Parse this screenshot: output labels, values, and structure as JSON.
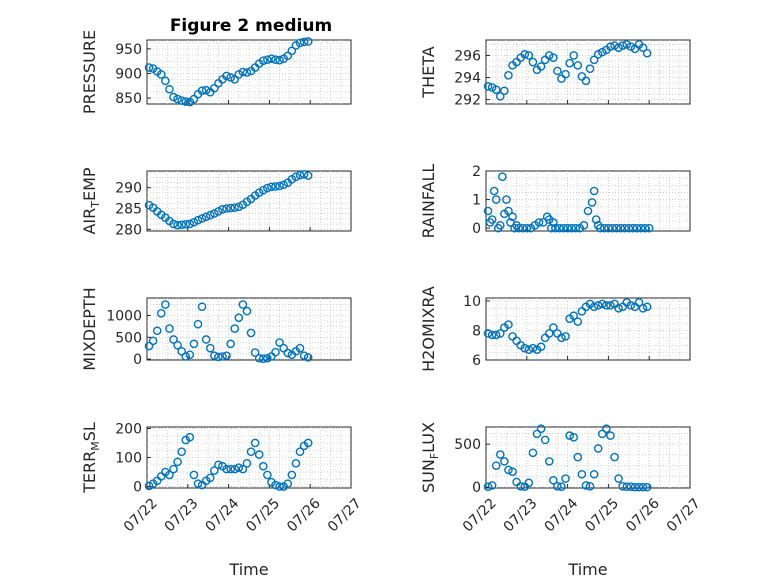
{
  "figure_title": "Figure 2 medium",
  "x_axis_label": "Time",
  "x_tick_labels": [
    "07/22",
    "07/23",
    "07/24",
    "07/25",
    "07/26",
    "07/27"
  ],
  "colors": {
    "marker": "#0072BD",
    "axes": "#262626",
    "grid": "#c8c8c8"
  },
  "chart_data": [
    {
      "type": "scatter",
      "title": "Figure 2 medium",
      "ylabel": "PRESSURE",
      "xlabel": "",
      "xlim": [
        "07/22",
        "07/27"
      ],
      "ylim": [
        838,
        968
      ],
      "yticks": [
        850,
        900,
        950
      ],
      "grid": true,
      "marker": "circle",
      "x": [
        22.05,
        22.15,
        22.25,
        22.35,
        22.45,
        22.55,
        22.65,
        22.75,
        22.85,
        22.95,
        23.05,
        23.15,
        23.25,
        23.35,
        23.45,
        23.55,
        23.65,
        23.75,
        23.85,
        23.95,
        24.05,
        24.15,
        24.25,
        24.35,
        24.45,
        24.55,
        24.65,
        24.75,
        24.85,
        24.95,
        25.05,
        25.15,
        25.25,
        25.35,
        25.45,
        25.55,
        25.65,
        25.75,
        25.85,
        25.95
      ],
      "y": [
        912,
        910,
        904,
        898,
        885,
        868,
        852,
        848,
        845,
        843,
        842,
        848,
        858,
        865,
        866,
        862,
        870,
        880,
        888,
        895,
        892,
        888,
        898,
        903,
        902,
        905,
        912,
        920,
        926,
        928,
        930,
        928,
        927,
        930,
        936,
        946,
        957,
        962,
        964,
        965
      ]
    },
    {
      "type": "scatter",
      "ylabel": "THETA",
      "xlabel": "",
      "xlim": [
        "07/22",
        "07/27"
      ],
      "ylim": [
        291.6,
        297.4
      ],
      "yticks": [
        292,
        294,
        296
      ],
      "grid": true,
      "marker": "circle",
      "x": [
        22.05,
        22.15,
        22.25,
        22.35,
        22.45,
        22.55,
        22.65,
        22.75,
        22.85,
        22.95,
        23.05,
        23.15,
        23.25,
        23.35,
        23.45,
        23.55,
        23.65,
        23.75,
        23.85,
        23.95,
        24.05,
        24.15,
        24.25,
        24.35,
        24.45,
        24.55,
        24.65,
        24.75,
        24.85,
        24.95,
        25.05,
        25.15,
        25.25,
        25.35,
        25.45,
        25.55,
        25.65,
        25.75,
        25.85,
        25.95
      ],
      "y": [
        293.2,
        293.1,
        292.9,
        292.3,
        292.8,
        294.2,
        295.1,
        295.4,
        295.8,
        296.1,
        296.0,
        295.4,
        294.7,
        295.0,
        295.6,
        296.0,
        295.8,
        294.6,
        293.9,
        294.3,
        295.3,
        296.0,
        295.1,
        294.1,
        293.7,
        294.8,
        295.6,
        296.1,
        296.3,
        296.5,
        296.8,
        296.9,
        296.7,
        296.9,
        297.0,
        296.8,
        296.6,
        297.0,
        296.7,
        296.2
      ]
    },
    {
      "type": "scatter",
      "ylabel": "AIR_TEMP",
      "xlabel": "",
      "xlim": [
        "07/22",
        "07/27"
      ],
      "ylim": [
        279.6,
        294.0
      ],
      "yticks": [
        280,
        285,
        290
      ],
      "grid": true,
      "marker": "circle",
      "x": [
        22.05,
        22.15,
        22.25,
        22.35,
        22.45,
        22.55,
        22.65,
        22.75,
        22.85,
        22.95,
        23.05,
        23.15,
        23.25,
        23.35,
        23.45,
        23.55,
        23.65,
        23.75,
        23.85,
        23.95,
        24.05,
        24.15,
        24.25,
        24.35,
        24.45,
        24.55,
        24.65,
        24.75,
        24.85,
        24.95,
        25.05,
        25.15,
        25.25,
        25.35,
        25.45,
        25.55,
        25.65,
        25.75,
        25.85,
        25.95
      ],
      "y": [
        285.8,
        285.2,
        284.3,
        283.5,
        282.8,
        282.0,
        281.3,
        281.0,
        281.1,
        281.2,
        281.3,
        281.7,
        282.2,
        282.6,
        283.0,
        283.4,
        283.8,
        284.3,
        284.8,
        285.0,
        285.1,
        285.2,
        285.4,
        285.9,
        286.6,
        287.3,
        288.1,
        288.8,
        289.4,
        289.9,
        290.2,
        290.3,
        290.4,
        290.7,
        291.2,
        292.0,
        292.6,
        293.0,
        293.2,
        292.9
      ]
    },
    {
      "type": "scatter",
      "ylabel": "RAINFALL",
      "xlabel": "",
      "xlim": [
        "07/22",
        "07/27"
      ],
      "ylim": [
        -0.1,
        2.0
      ],
      "yticks": [
        0,
        1,
        2
      ],
      "grid": true,
      "marker": "circle",
      "x": [
        22.05,
        22.1,
        22.15,
        22.2,
        22.25,
        22.3,
        22.35,
        22.4,
        22.45,
        22.5,
        22.55,
        22.6,
        22.65,
        22.7,
        22.75,
        22.8,
        22.9,
        23.0,
        23.1,
        23.2,
        23.3,
        23.4,
        23.5,
        23.55,
        23.6,
        23.65,
        23.7,
        23.8,
        23.9,
        24.0,
        24.1,
        24.2,
        24.3,
        24.4,
        24.5,
        24.6,
        24.65,
        24.7,
        24.75,
        24.8,
        24.9,
        25.0,
        25.1,
        25.2,
        25.3,
        25.4,
        25.5,
        25.6,
        25.7,
        25.8,
        25.9,
        26.0
      ],
      "y": [
        0.6,
        0.2,
        0.3,
        1.3,
        1.0,
        0.0,
        0.1,
        1.8,
        0.5,
        1.0,
        0.6,
        0.2,
        0.4,
        0.0,
        0.1,
        0.0,
        0.0,
        0.0,
        0.0,
        0.1,
        0.2,
        0.2,
        0.4,
        0.3,
        0.0,
        0.2,
        0.0,
        0.0,
        0.0,
        0.0,
        0.0,
        0.0,
        0.0,
        0.1,
        0.6,
        0.9,
        1.3,
        0.3,
        0.1,
        0.0,
        0.0,
        0.0,
        0.0,
        0.0,
        0.0,
        0.0,
        0.0,
        0.0,
        0.0,
        0.0,
        0.0,
        0.0
      ]
    },
    {
      "type": "scatter",
      "ylabel": "MIXDEPTH",
      "xlabel": "",
      "xlim": [
        "07/22",
        "07/27"
      ],
      "ylim": [
        -20,
        1400
      ],
      "yticks": [
        0,
        500,
        1000
      ],
      "grid": true,
      "marker": "circle",
      "x": [
        22.05,
        22.15,
        22.25,
        22.35,
        22.45,
        22.55,
        22.65,
        22.75,
        22.85,
        22.95,
        23.05,
        23.15,
        23.25,
        23.35,
        23.45,
        23.55,
        23.65,
        23.75,
        23.85,
        23.95,
        24.05,
        24.15,
        24.25,
        24.35,
        24.45,
        24.55,
        24.65,
        24.75,
        24.85,
        24.95,
        25.05,
        25.15,
        25.25,
        25.35,
        25.45,
        25.55,
        25.65,
        25.75,
        25.85,
        25.95
      ],
      "y": [
        300,
        420,
        650,
        1050,
        1250,
        700,
        450,
        320,
        180,
        60,
        100,
        350,
        800,
        1200,
        450,
        250,
        80,
        50,
        60,
        80,
        350,
        700,
        950,
        1250,
        1100,
        600,
        150,
        20,
        10,
        20,
        60,
        160,
        380,
        250,
        140,
        100,
        180,
        250,
        80,
        40
      ]
    },
    {
      "type": "scatter",
      "ylabel": "H2OMIXRA",
      "xlabel": "",
      "xlim": [
        "07/22",
        "07/27"
      ],
      "ylim": [
        6,
        10.2
      ],
      "yticks": [
        6,
        8,
        10
      ],
      "grid": true,
      "marker": "circle",
      "x": [
        22.05,
        22.15,
        22.25,
        22.35,
        22.45,
        22.55,
        22.65,
        22.75,
        22.85,
        22.95,
        23.05,
        23.15,
        23.25,
        23.35,
        23.45,
        23.55,
        23.65,
        23.75,
        23.85,
        23.95,
        24.05,
        24.15,
        24.25,
        24.35,
        24.45,
        24.55,
        24.65,
        24.75,
        24.85,
        24.95,
        25.05,
        25.15,
        25.25,
        25.35,
        25.45,
        25.55,
        25.65,
        25.75,
        25.85,
        25.95
      ],
      "y": [
        7.8,
        7.7,
        7.7,
        7.8,
        8.2,
        8.4,
        7.6,
        7.3,
        7.0,
        6.8,
        6.7,
        6.8,
        6.7,
        6.9,
        7.5,
        7.8,
        8.2,
        7.8,
        7.5,
        7.6,
        8.8,
        9.0,
        8.6,
        9.3,
        9.6,
        9.8,
        9.6,
        9.7,
        9.8,
        9.7,
        9.7,
        9.8,
        9.5,
        9.6,
        9.9,
        9.7,
        9.6,
        9.9,
        9.5,
        9.6
      ]
    },
    {
      "type": "scatter",
      "ylabel": "TERR_MSL",
      "xlabel": "Time",
      "xlim": [
        "07/22",
        "07/27"
      ],
      "ylim": [
        -5,
        205
      ],
      "yticks": [
        0,
        100,
        200
      ],
      "grid": true,
      "marker": "circle",
      "x": [
        22.05,
        22.15,
        22.25,
        22.35,
        22.45,
        22.55,
        22.65,
        22.75,
        22.85,
        22.95,
        23.05,
        23.15,
        23.25,
        23.35,
        23.45,
        23.55,
        23.65,
        23.75,
        23.85,
        23.95,
        24.05,
        24.15,
        24.25,
        24.35,
        24.45,
        24.55,
        24.65,
        24.75,
        24.85,
        24.95,
        25.05,
        25.15,
        25.25,
        25.35,
        25.45,
        25.55,
        25.65,
        25.75,
        25.85,
        25.95
      ],
      "y": [
        2,
        10,
        20,
        35,
        50,
        40,
        60,
        85,
        120,
        160,
        170,
        40,
        10,
        5,
        20,
        30,
        55,
        75,
        70,
        60,
        60,
        60,
        65,
        60,
        80,
        120,
        150,
        110,
        70,
        40,
        15,
        5,
        0,
        0,
        10,
        40,
        80,
        120,
        140,
        150
      ]
    },
    {
      "type": "scatter",
      "ylabel": "SUN_FLUX",
      "xlabel": "Time",
      "xlim": [
        "07/22",
        "07/27"
      ],
      "ylim": [
        -10,
        700
      ],
      "yticks": [
        0,
        500
      ],
      "grid": true,
      "marker": "circle",
      "x": [
        22.05,
        22.15,
        22.25,
        22.35,
        22.45,
        22.55,
        22.65,
        22.75,
        22.85,
        22.95,
        23.05,
        23.15,
        23.25,
        23.35,
        23.45,
        23.55,
        23.65,
        23.75,
        23.85,
        23.95,
        24.05,
        24.15,
        24.25,
        24.35,
        24.45,
        24.55,
        24.65,
        24.75,
        24.85,
        24.95,
        25.05,
        25.15,
        25.25,
        25.35,
        25.45,
        25.55,
        25.65,
        25.75,
        25.85,
        25.95
      ],
      "y": [
        5,
        20,
        250,
        380,
        300,
        200,
        180,
        60,
        10,
        5,
        50,
        400,
        620,
        680,
        550,
        300,
        80,
        10,
        5,
        100,
        600,
        580,
        350,
        150,
        20,
        10,
        150,
        450,
        620,
        680,
        600,
        350,
        100,
        10,
        5,
        5,
        0,
        0,
        0,
        0
      ]
    }
  ]
}
